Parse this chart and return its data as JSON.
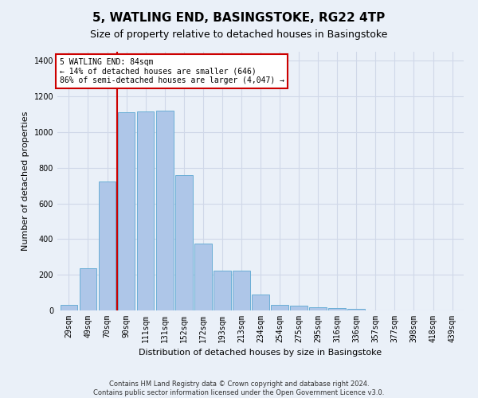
{
  "title": "5, WATLING END, BASINGSTOKE, RG22 4TP",
  "subtitle": "Size of property relative to detached houses in Basingstoke",
  "xlabel": "Distribution of detached houses by size in Basingstoke",
  "ylabel": "Number of detached properties",
  "footer_line1": "Contains HM Land Registry data © Crown copyright and database right 2024.",
  "footer_line2": "Contains public sector information licensed under the Open Government Licence v3.0.",
  "categories": [
    "29sqm",
    "49sqm",
    "70sqm",
    "90sqm",
    "111sqm",
    "131sqm",
    "152sqm",
    "172sqm",
    "193sqm",
    "213sqm",
    "234sqm",
    "254sqm",
    "275sqm",
    "295sqm",
    "316sqm",
    "336sqm",
    "357sqm",
    "377sqm",
    "398sqm",
    "418sqm",
    "439sqm"
  ],
  "values": [
    30,
    235,
    725,
    1110,
    1115,
    1120,
    760,
    375,
    225,
    225,
    90,
    30,
    25,
    20,
    15,
    10,
    0,
    0,
    0,
    0,
    0
  ],
  "bar_color": "#aec6e8",
  "bar_edge_color": "#6aaed6",
  "annotation_label": "5 WATLING END: 84sqm",
  "annotation_line1": "← 14% of detached houses are smaller (646)",
  "annotation_line2": "86% of semi-detached houses are larger (4,047) →",
  "annotation_box_color": "#ffffff",
  "annotation_box_edge_color": "#cc0000",
  "vline_color": "#cc0000",
  "vline_x": 2.5,
  "ylim": [
    0,
    1450
  ],
  "yticks": [
    0,
    200,
    400,
    600,
    800,
    1000,
    1200,
    1400
  ],
  "grid_color": "#d0d8e8",
  "bg_color": "#eaf0f8",
  "plot_bg_color": "#eaf0f8",
  "title_fontsize": 11,
  "subtitle_fontsize": 9,
  "tick_fontsize": 7,
  "ylabel_fontsize": 8,
  "xlabel_fontsize": 8,
  "annotation_fontsize": 7,
  "footer_fontsize": 6
}
